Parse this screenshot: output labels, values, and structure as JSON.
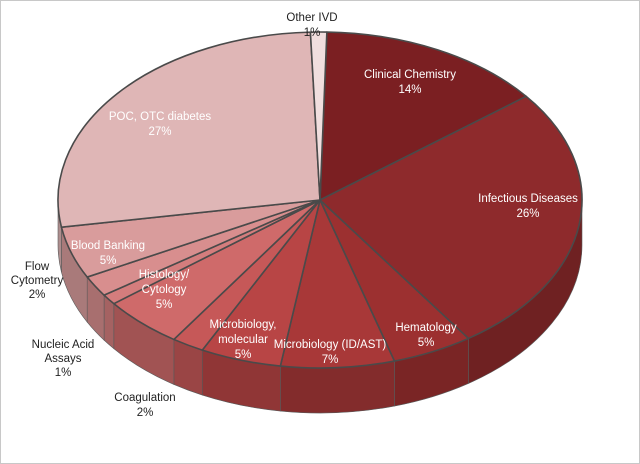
{
  "chart_data": {
    "type": "pie",
    "title": "",
    "slices": [
      {
        "name": "Clinical Chemistry",
        "value": 14,
        "label": "14%",
        "color": "#7b1f22"
      },
      {
        "name": "Infectious Diseases",
        "value": 26,
        "label": "26%",
        "color": "#8e2a2c"
      },
      {
        "name": "Hematology",
        "value": 5,
        "label": "5%",
        "color": "#9c3030"
      },
      {
        "name": "Microbiology (ID/AST)",
        "value": 7,
        "label": "7%",
        "color": "#a83838"
      },
      {
        "name": "Microbiology, molecular",
        "value": 5,
        "label": "5%",
        "color": "#b84545"
      },
      {
        "name": "Coagulation",
        "value": 2,
        "label": "2%",
        "color": "#c65858"
      },
      {
        "name": "Histology/ Cytology",
        "value": 5,
        "label": "5%",
        "color": "#cf6a6a"
      },
      {
        "name": "Nucleic Acid Assays",
        "value": 1,
        "label": "1%",
        "color": "#d47d7d"
      },
      {
        "name": "Flow Cytometry",
        "value": 2,
        "label": "2%",
        "color": "#d88e8e"
      },
      {
        "name": "Blood Banking",
        "value": 5,
        "label": "5%",
        "color": "#d99c9c"
      },
      {
        "name": "POC, OTC diabetes",
        "value": 27,
        "label": "27%",
        "color": "#dfb6b6"
      },
      {
        "name": "Other IVD",
        "value": 1,
        "label": "1%",
        "color": "#f0dede"
      }
    ]
  }
}
